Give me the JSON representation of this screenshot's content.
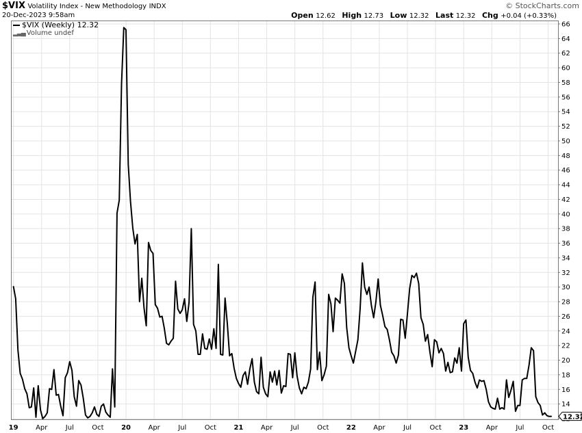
{
  "header": {
    "symbol": "$VIX",
    "name": "Volatility Index - New Methodology",
    "exchange": "INDX",
    "datetime": "20-Dec-2023 9:58am",
    "source": "© StockCharts.com",
    "quote": {
      "open_label": "Open",
      "open": "12.62",
      "high_label": "High",
      "high": "12.73",
      "low_label": "Low",
      "low": "12.32",
      "last_label": "Last",
      "last": "12.32",
      "chg_label": "Chg",
      "chg": "+0.04 (+0.33%)"
    }
  },
  "legend": {
    "series": "$VIX (Weekly) 12.32",
    "volume": "Volume undef"
  },
  "last_value_tag": "12.32",
  "chart_data": {
    "type": "line",
    "title": "$VIX Volatility Index - New Methodology (Weekly)",
    "y_axis": {
      "position": "right",
      "min": 12,
      "max": 66,
      "ticks": [
        12,
        14,
        16,
        18,
        20,
        22,
        24,
        26,
        28,
        30,
        32,
        34,
        36,
        38,
        40,
        42,
        44,
        46,
        48,
        50,
        52,
        54,
        56,
        58,
        60,
        62,
        64,
        66
      ]
    },
    "x_tick_labels": [
      {
        "label": "19",
        "bold": true,
        "t": 2019.0
      },
      {
        "label": "Apr",
        "t": 2019.25
      },
      {
        "label": "Jul",
        "t": 2019.5
      },
      {
        "label": "Oct",
        "t": 2019.75
      },
      {
        "label": "20",
        "bold": true,
        "t": 2020.0
      },
      {
        "label": "Apr",
        "t": 2020.25
      },
      {
        "label": "Jul",
        "t": 2020.5
      },
      {
        "label": "Oct",
        "t": 2020.75
      },
      {
        "label": "21",
        "bold": true,
        "t": 2021.0
      },
      {
        "label": "Apr",
        "t": 2021.25
      },
      {
        "label": "Jul",
        "t": 2021.5
      },
      {
        "label": "Oct",
        "t": 2021.75
      },
      {
        "label": "22",
        "bold": true,
        "t": 2022.0
      },
      {
        "label": "Apr",
        "t": 2022.25
      },
      {
        "label": "Jul",
        "t": 2022.5
      },
      {
        "label": "Oct",
        "t": 2022.75
      },
      {
        "label": "23",
        "bold": true,
        "t": 2023.0
      },
      {
        "label": "Apr",
        "t": 2023.25
      },
      {
        "label": "Jul",
        "t": 2023.5
      },
      {
        "label": "Oct",
        "t": 2023.75
      }
    ],
    "x_range": [
      2018.99,
      2023.99
    ],
    "grid": true,
    "series": [
      {
        "name": "$VIX (Weekly)",
        "points": [
          [
            2019.0,
            30.1
          ],
          [
            2019.02,
            28.4
          ],
          [
            2019.04,
            21.4
          ],
          [
            2019.06,
            18.2
          ],
          [
            2019.08,
            17.4
          ],
          [
            2019.1,
            16.1
          ],
          [
            2019.12,
            15.4
          ],
          [
            2019.14,
            13.5
          ],
          [
            2019.16,
            13.6
          ],
          [
            2019.18,
            16.2
          ],
          [
            2019.2,
            12.2
          ],
          [
            2019.22,
            16.5
          ],
          [
            2019.24,
            13.2
          ],
          [
            2019.26,
            12.0
          ],
          [
            2019.28,
            12.3
          ],
          [
            2019.3,
            12.8
          ],
          [
            2019.32,
            16.1
          ],
          [
            2019.34,
            16.0
          ],
          [
            2019.36,
            18.7
          ],
          [
            2019.38,
            15.2
          ],
          [
            2019.4,
            15.3
          ],
          [
            2019.42,
            13.7
          ],
          [
            2019.44,
            12.4
          ],
          [
            2019.46,
            17.6
          ],
          [
            2019.48,
            18.3
          ],
          [
            2019.5,
            19.8
          ],
          [
            2019.52,
            18.6
          ],
          [
            2019.54,
            15.0
          ],
          [
            2019.56,
            13.7
          ],
          [
            2019.58,
            17.2
          ],
          [
            2019.6,
            16.6
          ],
          [
            2019.62,
            14.8
          ],
          [
            2019.64,
            12.5
          ],
          [
            2019.66,
            12.1
          ],
          [
            2019.68,
            12.3
          ],
          [
            2019.7,
            12.8
          ],
          [
            2019.72,
            13.6
          ],
          [
            2019.74,
            12.6
          ],
          [
            2019.76,
            12.3
          ],
          [
            2019.78,
            13.7
          ],
          [
            2019.8,
            14.0
          ],
          [
            2019.82,
            12.9
          ],
          [
            2019.84,
            12.5
          ],
          [
            2019.86,
            12.2
          ],
          [
            2019.88,
            18.8
          ],
          [
            2019.9,
            13.6
          ],
          [
            2019.92,
            40.1
          ],
          [
            2019.94,
            41.9
          ],
          [
            2019.96,
            57.8
          ],
          [
            2019.98,
            65.5
          ],
          [
            2020.0,
            65.2
          ],
          [
            2020.02,
            46.8
          ],
          [
            2020.04,
            41.7
          ],
          [
            2020.06,
            38.1
          ],
          [
            2020.08,
            35.9
          ],
          [
            2020.1,
            37.2
          ],
          [
            2020.12,
            28.0
          ],
          [
            2020.14,
            31.2
          ],
          [
            2020.16,
            27.2
          ],
          [
            2020.18,
            24.7
          ],
          [
            2020.2,
            36.1
          ],
          [
            2020.22,
            35.0
          ],
          [
            2020.24,
            34.6
          ],
          [
            2020.26,
            27.6
          ],
          [
            2020.28,
            27.1
          ],
          [
            2020.3,
            25.9
          ],
          [
            2020.32,
            26.0
          ],
          [
            2020.34,
            24.4
          ],
          [
            2020.36,
            22.3
          ],
          [
            2020.38,
            22.1
          ],
          [
            2020.4,
            22.6
          ],
          [
            2020.42,
            23.0
          ],
          [
            2020.44,
            30.8
          ],
          [
            2020.46,
            27.0
          ],
          [
            2020.48,
            26.4
          ],
          [
            2020.5,
            26.9
          ],
          [
            2020.52,
            28.4
          ],
          [
            2020.54,
            25.3
          ],
          [
            2020.56,
            27.9
          ],
          [
            2020.58,
            38.0
          ],
          [
            2020.6,
            24.9
          ],
          [
            2020.62,
            24.0
          ],
          [
            2020.64,
            20.8
          ],
          [
            2020.66,
            20.8
          ],
          [
            2020.68,
            23.6
          ],
          [
            2020.7,
            21.6
          ],
          [
            2020.72,
            21.5
          ],
          [
            2020.74,
            22.9
          ],
          [
            2020.76,
            21.5
          ],
          [
            2020.78,
            24.3
          ],
          [
            2020.8,
            21.6
          ],
          [
            2020.82,
            33.1
          ],
          [
            2020.84,
            20.8
          ],
          [
            2020.86,
            20.7
          ],
          [
            2020.88,
            28.5
          ],
          [
            2020.9,
            25.0
          ],
          [
            2020.92,
            20.6
          ],
          [
            2020.94,
            20.9
          ],
          [
            2020.96,
            18.9
          ],
          [
            2020.98,
            17.5
          ],
          [
            2021.0,
            16.8
          ],
          [
            2021.02,
            16.3
          ],
          [
            2021.04,
            17.9
          ],
          [
            2021.06,
            18.4
          ],
          [
            2021.08,
            16.7
          ],
          [
            2021.1,
            18.8
          ],
          [
            2021.12,
            20.2
          ],
          [
            2021.14,
            17.0
          ],
          [
            2021.16,
            15.7
          ],
          [
            2021.18,
            15.4
          ],
          [
            2021.2,
            20.4
          ],
          [
            2021.22,
            16.3
          ],
          [
            2021.24,
            15.4
          ],
          [
            2021.26,
            15.0
          ],
          [
            2021.28,
            18.4
          ],
          [
            2021.3,
            17.0
          ],
          [
            2021.32,
            18.5
          ],
          [
            2021.34,
            16.6
          ],
          [
            2021.36,
            18.6
          ],
          [
            2021.38,
            15.5
          ],
          [
            2021.4,
            16.5
          ],
          [
            2021.42,
            16.4
          ],
          [
            2021.44,
            20.9
          ],
          [
            2021.46,
            20.8
          ],
          [
            2021.48,
            17.6
          ],
          [
            2021.5,
            21.0
          ],
          [
            2021.52,
            17.8
          ],
          [
            2021.54,
            16.2
          ],
          [
            2021.56,
            15.4
          ],
          [
            2021.58,
            16.3
          ],
          [
            2021.6,
            16.1
          ],
          [
            2021.62,
            17.0
          ],
          [
            2021.64,
            18.8
          ],
          [
            2021.66,
            28.6
          ],
          [
            2021.68,
            30.7
          ],
          [
            2021.7,
            18.7
          ],
          [
            2021.72,
            21.1
          ],
          [
            2021.74,
            17.2
          ],
          [
            2021.76,
            18.0
          ],
          [
            2021.78,
            19.2
          ],
          [
            2021.8,
            29.0
          ],
          [
            2021.82,
            27.7
          ],
          [
            2021.84,
            23.9
          ],
          [
            2021.86,
            28.5
          ],
          [
            2021.88,
            28.2
          ],
          [
            2021.9,
            27.8
          ],
          [
            2021.92,
            31.8
          ],
          [
            2021.94,
            30.5
          ],
          [
            2021.96,
            24.5
          ],
          [
            2021.98,
            21.7
          ],
          [
            2022.0,
            20.6
          ],
          [
            2022.02,
            19.6
          ],
          [
            2022.04,
            21.2
          ],
          [
            2022.06,
            22.8
          ],
          [
            2022.08,
            27.1
          ],
          [
            2022.1,
            33.3
          ],
          [
            2022.12,
            30.0
          ],
          [
            2022.14,
            29.0
          ],
          [
            2022.16,
            30.0
          ],
          [
            2022.18,
            27.5
          ],
          [
            2022.2,
            25.8
          ],
          [
            2022.22,
            28.0
          ],
          [
            2022.24,
            31.1
          ],
          [
            2022.26,
            27.5
          ],
          [
            2022.28,
            26.1
          ],
          [
            2022.3,
            24.6
          ],
          [
            2022.32,
            24.2
          ],
          [
            2022.34,
            22.8
          ],
          [
            2022.36,
            21.1
          ],
          [
            2022.38,
            20.6
          ],
          [
            2022.4,
            19.6
          ],
          [
            2022.42,
            20.7
          ],
          [
            2022.44,
            25.6
          ],
          [
            2022.46,
            25.5
          ],
          [
            2022.48,
            23.0
          ],
          [
            2022.5,
            26.3
          ],
          [
            2022.52,
            29.8
          ],
          [
            2022.54,
            31.6
          ],
          [
            2022.56,
            31.3
          ],
          [
            2022.58,
            31.9
          ],
          [
            2022.6,
            30.5
          ],
          [
            2022.62,
            25.8
          ],
          [
            2022.64,
            24.9
          ],
          [
            2022.66,
            22.6
          ],
          [
            2022.68,
            23.5
          ],
          [
            2022.7,
            21.1
          ],
          [
            2022.72,
            19.1
          ],
          [
            2022.74,
            22.8
          ],
          [
            2022.76,
            22.5
          ],
          [
            2022.78,
            21.0
          ],
          [
            2022.8,
            21.6
          ],
          [
            2022.82,
            20.9
          ],
          [
            2022.84,
            18.5
          ],
          [
            2022.86,
            19.7
          ],
          [
            2022.88,
            18.3
          ],
          [
            2022.9,
            18.4
          ],
          [
            2022.92,
            20.3
          ],
          [
            2022.94,
            19.6
          ],
          [
            2022.96,
            21.7
          ],
          [
            2022.98,
            18.5
          ],
          [
            2023.0,
            25.0
          ],
          [
            2023.02,
            25.5
          ],
          [
            2023.04,
            20.4
          ],
          [
            2023.06,
            18.6
          ],
          [
            2023.08,
            18.2
          ],
          [
            2023.1,
            17.0
          ],
          [
            2023.12,
            16.2
          ],
          [
            2023.14,
            17.3
          ],
          [
            2023.16,
            17.1
          ],
          [
            2023.18,
            17.2
          ],
          [
            2023.2,
            16.0
          ],
          [
            2023.22,
            14.3
          ],
          [
            2023.24,
            13.6
          ],
          [
            2023.26,
            13.4
          ],
          [
            2023.28,
            13.3
          ],
          [
            2023.3,
            14.8
          ],
          [
            2023.32,
            13.3
          ],
          [
            2023.34,
            13.5
          ],
          [
            2023.36,
            13.3
          ],
          [
            2023.38,
            17.3
          ],
          [
            2023.4,
            14.9
          ],
          [
            2023.42,
            15.9
          ],
          [
            2023.44,
            17.1
          ],
          [
            2023.46,
            13.0
          ],
          [
            2023.48,
            13.8
          ],
          [
            2023.5,
            13.8
          ],
          [
            2023.52,
            17.3
          ],
          [
            2023.54,
            17.5
          ],
          [
            2023.56,
            17.5
          ],
          [
            2023.58,
            19.3
          ],
          [
            2023.6,
            21.7
          ],
          [
            2023.62,
            21.3
          ],
          [
            2023.64,
            15.0
          ],
          [
            2023.66,
            14.2
          ],
          [
            2023.68,
            13.8
          ],
          [
            2023.7,
            12.5
          ],
          [
            2023.72,
            12.8
          ],
          [
            2023.74,
            12.4
          ],
          [
            2023.76,
            12.3
          ],
          [
            2023.78,
            12.32
          ]
        ]
      }
    ]
  }
}
